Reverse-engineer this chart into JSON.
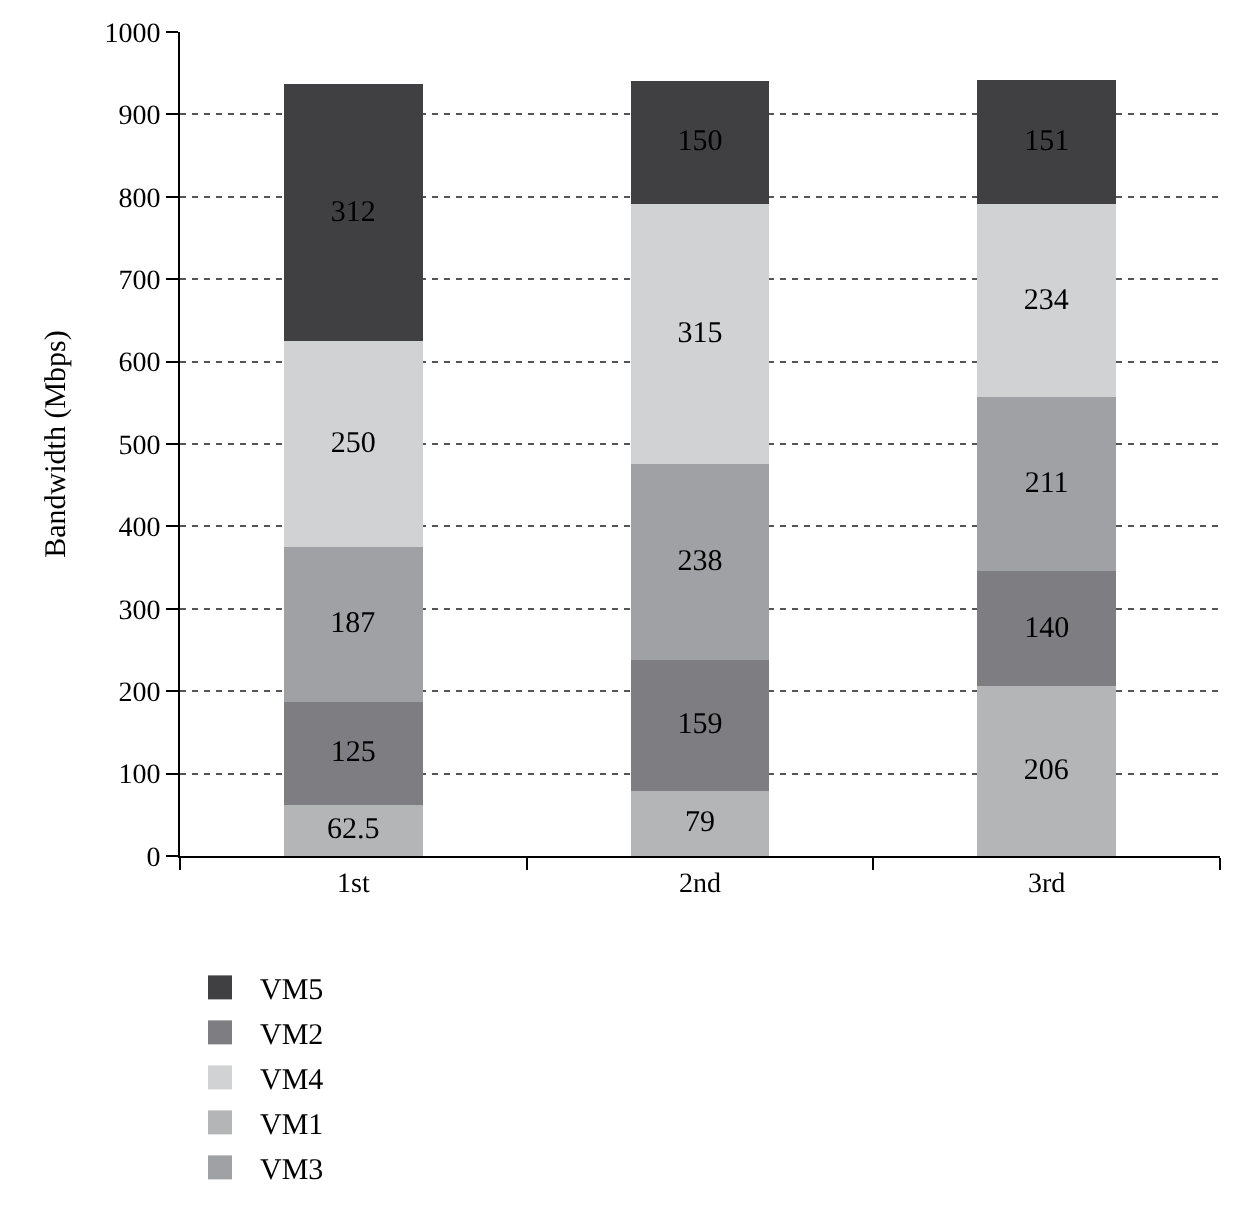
{
  "chart_data": {
    "type": "bar",
    "stacked": true,
    "ylabel": "Bandwidth (Mbps)",
    "categories": [
      "1st",
      "2nd",
      "3rd"
    ],
    "series": [
      {
        "name": "VM1",
        "color": "#b4b5b7",
        "values": [
          62.5,
          79,
          206
        ]
      },
      {
        "name": "VM2",
        "color": "#7e7d82",
        "values": [
          125,
          159,
          140
        ]
      },
      {
        "name": "VM3",
        "color": "#a0a1a5",
        "values": [
          187,
          238,
          211
        ]
      },
      {
        "name": "VM4",
        "color": "#d1d2d4",
        "values": [
          250,
          315,
          234
        ]
      },
      {
        "name": "VM5",
        "color": "#404042",
        "values": [
          312,
          150,
          151
        ]
      }
    ],
    "ylim": [
      0,
      1000
    ],
    "yticks": [
      0,
      100,
      200,
      300,
      400,
      500,
      600,
      700,
      800,
      900,
      1000
    ],
    "grid": "y",
    "legend": "bottom",
    "data_labels": true
  }
}
